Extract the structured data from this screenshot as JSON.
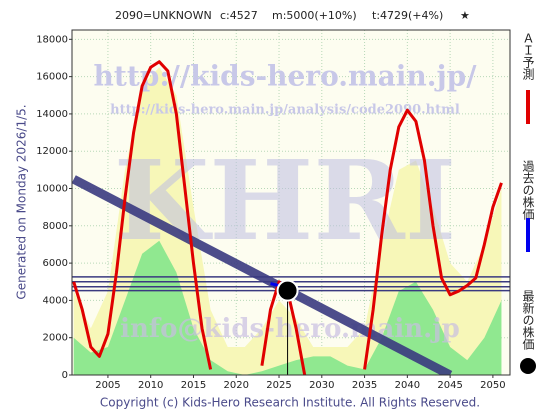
{
  "chart_data": {
    "type": "line",
    "title_parts": [
      "2090=UNKNOWN",
      "c:4527",
      "m:5000(+10%)",
      "t:4729(+4%)",
      "★"
    ],
    "ylabel": "Generated on Monday 2026/1/5.",
    "footer": "Copyright (c) Kids-Hero Research Institute. All Rights Reserved.",
    "watermarks": [
      "http://kids-hero.main.jp/",
      "http://kids-hero.main.jp/analysis/code2090.html",
      "KHRI",
      "info@kids-hero.main.jp"
    ],
    "xlim": [
      2000.8,
      2052
    ],
    "xticks": [
      2005,
      2010,
      2015,
      2020,
      2025,
      2030,
      2035,
      2040,
      2045,
      2050
    ],
    "ylim": [
      0,
      18500
    ],
    "yticks": [
      0,
      2000,
      4000,
      6000,
      8000,
      10000,
      12000,
      14000,
      16000,
      18000
    ],
    "grid": true,
    "areas": [
      {
        "color": "#f7f7b8",
        "x": [
          2001,
          2003,
          2005,
          2007,
          2009,
          2011,
          2013,
          2015,
          2017,
          2019,
          2021,
          2023,
          2025,
          2027,
          2029,
          2031,
          2033,
          2035,
          2037,
          2039,
          2041,
          2043,
          2045,
          2047,
          2049,
          2051
        ],
        "values": [
          4500,
          2500,
          4500,
          11000,
          15500,
          16500,
          15000,
          9000,
          3500,
          1500,
          1500,
          2500,
          4000,
          3000,
          1500,
          1500,
          1500,
          2500,
          7000,
          11000,
          11500,
          9000,
          6000,
          5000,
          7000,
          10000
        ]
      },
      {
        "color": "#90e890",
        "x": [
          2001,
          2003,
          2005,
          2007,
          2009,
          2011,
          2013,
          2015,
          2017,
          2019,
          2021,
          2023,
          2025,
          2027,
          2029,
          2031,
          2033,
          2035,
          2037,
          2039,
          2041,
          2043,
          2045,
          2047,
          2049,
          2051
        ],
        "values": [
          2000,
          1200,
          1500,
          4000,
          6500,
          7200,
          5500,
          2500,
          800,
          200,
          0,
          200,
          500,
          800,
          1000,
          1000,
          500,
          300,
          2000,
          4500,
          5000,
          3500,
          1500,
          800,
          2000,
          4000
        ]
      }
    ],
    "series": [
      {
        "name": "ＡＩ予測",
        "color": "#e00000",
        "x": [
          2001,
          2002,
          2003,
          2004,
          2005,
          2006,
          2007,
          2008,
          2009,
          2010,
          2011,
          2012,
          2013,
          2014,
          2015,
          2016,
          2017,
          2018,
          2019,
          2020,
          2021,
          2022,
          2023,
          2024,
          2025,
          2026,
          2027,
          2028,
          2029,
          2030,
          2031,
          2032,
          2033,
          2034,
          2035,
          2036,
          2037,
          2038,
          2039,
          2040,
          2041,
          2042,
          2043,
          2044,
          2045,
          2046,
          2047,
          2048,
          2049,
          2050,
          2051
        ],
        "values": [
          5000,
          3500,
          1500,
          1000,
          2200,
          5500,
          9500,
          13000,
          15500,
          16500,
          16800,
          16300,
          14000,
          10000,
          6000,
          2500,
          300,
          null,
          null,
          null,
          null,
          null,
          500,
          3500,
          5000,
          4500,
          2500,
          0,
          null,
          null,
          null,
          null,
          null,
          null,
          300,
          3500,
          7500,
          11000,
          13300,
          14200,
          13600,
          11500,
          8000,
          5200,
          4300,
          4500,
          4800,
          5200,
          7000,
          9000,
          10300
        ]
      },
      {
        "name": "過去の株価",
        "color": "#0000ee",
        "x": [
          2024,
          2025,
          2026
        ],
        "values": [
          4900,
          4800,
          4527
        ]
      }
    ],
    "trend": {
      "color": "#3a3a80",
      "x": [
        2001,
        2045
      ],
      "values": [
        10500,
        0
      ]
    },
    "hlines": {
      "color": "#3a3a80",
      "values": [
        5260,
        5000,
        4729,
        4527
      ]
    },
    "latest": {
      "name": "最新の株価",
      "color": "#000000",
      "x": 2026,
      "value": 4527
    }
  }
}
